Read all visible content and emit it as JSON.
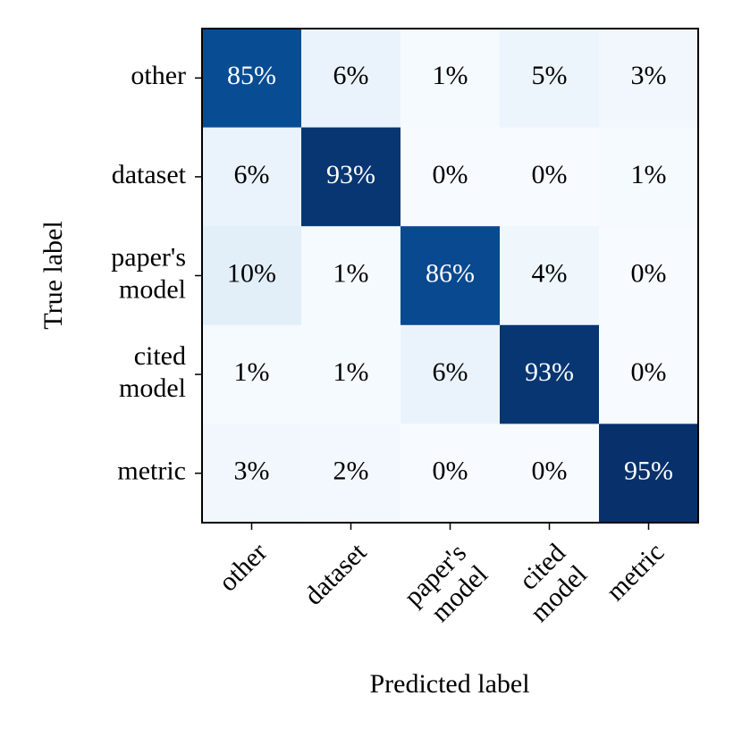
{
  "chart_data": {
    "type": "heatmap",
    "xlabel": "Predicted label",
    "ylabel": "True label",
    "x_categories": [
      "other",
      "dataset",
      "paper's model",
      "cited model",
      "metric"
    ],
    "y_categories": [
      "other",
      "dataset",
      "paper's model",
      "cited model",
      "metric"
    ],
    "values": [
      [
        85,
        6,
        1,
        5,
        3
      ],
      [
        6,
        93,
        0,
        0,
        1
      ],
      [
        10,
        1,
        86,
        4,
        0
      ],
      [
        1,
        1,
        6,
        93,
        0
      ],
      [
        3,
        2,
        0,
        0,
        95
      ]
    ],
    "value_labels": [
      [
        "85%",
        "6%",
        "1%",
        "5%",
        "3%"
      ],
      [
        "6%",
        "93%",
        "0%",
        "0%",
        "1%"
      ],
      [
        "10%",
        "1%",
        "86%",
        "4%",
        "0%"
      ],
      [
        "1%",
        "1%",
        "6%",
        "93%",
        "0%"
      ],
      [
        "3%",
        "2%",
        "0%",
        "0%",
        "95%"
      ]
    ],
    "colormap": "Blues"
  }
}
